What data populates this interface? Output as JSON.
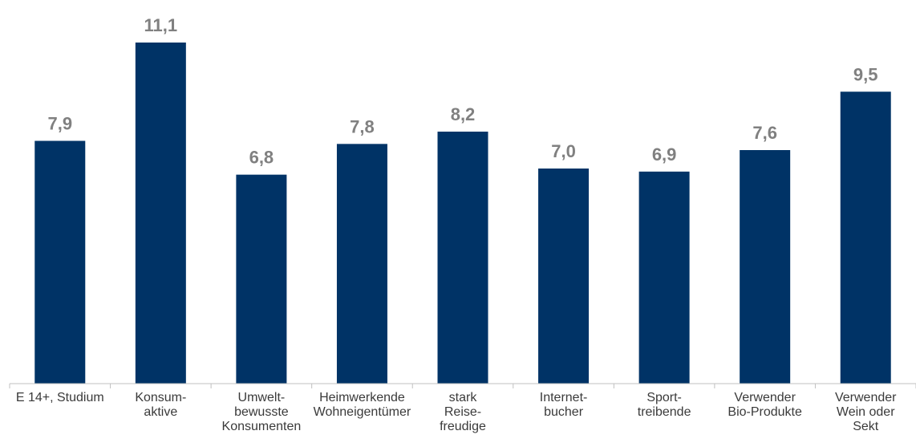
{
  "chart_data": {
    "type": "bar",
    "title": "",
    "xlabel": "",
    "ylabel": "",
    "categories": [
      [
        "E 14+, Studium"
      ],
      [
        "Konsum-",
        "aktive"
      ],
      [
        "Umwelt-",
        "bewusste",
        "Konsumenten"
      ],
      [
        "Heimwerkende",
        "Wohneigentümer"
      ],
      [
        "stark",
        "Reise-",
        "freudige"
      ],
      [
        "Internet-",
        "bucher"
      ],
      [
        "Sport-",
        "treibende"
      ],
      [
        "Verwender",
        "Bio-Produkte"
      ],
      [
        "Verwender",
        "Wein oder",
        "Sekt"
      ]
    ],
    "values": [
      7.9,
      11.1,
      6.8,
      7.8,
      8.2,
      7.0,
      6.9,
      7.6,
      9.5
    ],
    "value_labels": [
      "7,9",
      "11,1",
      "6,8",
      "7,8",
      "8,2",
      "7,0",
      "6,9",
      "7,6",
      "9,5"
    ],
    "ylim": [
      0,
      11.1
    ],
    "grid": false,
    "legend": "none",
    "colors": {
      "bar": "#003366",
      "value_label": "#808080",
      "axis": "#c0c0c0",
      "category_label": "#3a3a3a"
    }
  }
}
